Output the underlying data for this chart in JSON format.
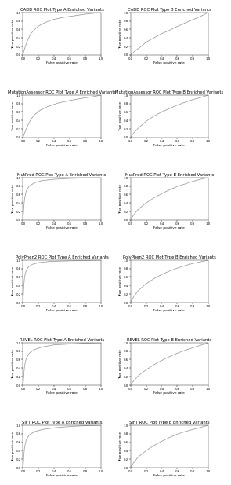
{
  "tools": [
    "CADD",
    "MutationAssessor",
    "MutPred",
    "PolyPhen2",
    "REVEL",
    "SIFT"
  ],
  "titles_A": [
    "CADD ROC Plot Type A Enriched Variants",
    "MutationAssessor ROC Plot Type A Enriched Variants",
    "MutPred ROC Plot Type A Enriched Variants",
    "PolyPhen2 ROC Plot Type A Enriched Variants",
    "REVEL ROC Plot Type A Enriched Variants",
    "SIFT ROC Plot Type A Enriched Variants"
  ],
  "titles_B": [
    "CADD ROC Plot Type B Enriched Variants",
    "MutationAssessor ROC Plot Type B Enriched Variants",
    "MutPred ROC Plot Type B Enriched Variants",
    "PolyPhen2 ROC Plot Type B Enriched Variants",
    "REVEL ROC Plot Type B Enriched Variants",
    "SIFT ROC Plot Type B Enriched Variants"
  ],
  "xlabel": "False positive rate",
  "ylabel": "True positive rate",
  "line_color": "#999999",
  "bg_color": "#ffffff",
  "title_fontsize": 3.8,
  "axis_fontsize": 3.2,
  "tick_fontsize": 2.8,
  "line_width": 0.55,
  "roc_A": {
    "CADD": [
      [
        0,
        0.01,
        0.03,
        0.06,
        0.1,
        0.15,
        0.2,
        0.28,
        0.38,
        0.5,
        0.65,
        0.8,
        1.0
      ],
      [
        0,
        0.08,
        0.2,
        0.35,
        0.5,
        0.6,
        0.68,
        0.76,
        0.83,
        0.88,
        0.92,
        0.96,
        1.0
      ]
    ],
    "MutationAssessor": [
      [
        0,
        0.01,
        0.03,
        0.06,
        0.1,
        0.15,
        0.22,
        0.32,
        0.45,
        0.6,
        0.75,
        0.9,
        1.0
      ],
      [
        0,
        0.05,
        0.15,
        0.28,
        0.42,
        0.54,
        0.64,
        0.73,
        0.81,
        0.87,
        0.92,
        0.96,
        1.0
      ]
    ],
    "MutPred": [
      [
        0,
        0.005,
        0.01,
        0.02,
        0.04,
        0.08,
        0.15,
        0.25,
        0.4,
        0.6,
        0.8,
        1.0
      ],
      [
        0,
        0.15,
        0.3,
        0.5,
        0.68,
        0.8,
        0.88,
        0.93,
        0.96,
        0.98,
        0.99,
        1.0
      ]
    ],
    "PolyPhen2": [
      [
        0,
        0.005,
        0.01,
        0.02,
        0.04,
        0.07,
        0.12,
        0.2,
        0.35,
        0.55,
        0.75,
        1.0
      ],
      [
        0,
        0.2,
        0.4,
        0.6,
        0.75,
        0.84,
        0.9,
        0.94,
        0.97,
        0.98,
        0.99,
        1.0
      ]
    ],
    "REVEL": [
      [
        0,
        0.005,
        0.01,
        0.02,
        0.04,
        0.08,
        0.15,
        0.25,
        0.4,
        0.6,
        0.8,
        1.0
      ],
      [
        0,
        0.1,
        0.25,
        0.45,
        0.62,
        0.75,
        0.84,
        0.9,
        0.95,
        0.97,
        0.99,
        1.0
      ]
    ],
    "SIFT": [
      [
        0,
        0.005,
        0.01,
        0.02,
        0.04,
        0.08,
        0.15,
        0.25,
        0.4,
        0.6,
        0.8,
        1.0
      ],
      [
        0,
        0.12,
        0.28,
        0.48,
        0.65,
        0.77,
        0.85,
        0.9,
        0.94,
        0.97,
        0.99,
        1.0
      ]
    ]
  },
  "roc_B": {
    "CADD": [
      [
        0,
        0.02,
        0.05,
        0.1,
        0.15,
        0.2,
        0.3,
        0.4,
        0.5,
        0.6,
        0.7,
        0.8,
        0.9,
        1.0
      ],
      [
        0,
        0.03,
        0.08,
        0.15,
        0.22,
        0.3,
        0.4,
        0.5,
        0.58,
        0.67,
        0.75,
        0.83,
        0.91,
        1.0
      ]
    ],
    "MutationAssessor": [
      [
        0,
        0.02,
        0.05,
        0.1,
        0.2,
        0.3,
        0.4,
        0.5,
        0.6,
        0.7,
        0.8,
        0.9,
        1.0
      ],
      [
        0,
        0.05,
        0.12,
        0.22,
        0.38,
        0.5,
        0.6,
        0.68,
        0.76,
        0.83,
        0.89,
        0.94,
        1.0
      ]
    ],
    "MutPred": [
      [
        0,
        0.02,
        0.05,
        0.1,
        0.2,
        0.3,
        0.4,
        0.5,
        0.6,
        0.7,
        0.8,
        0.9,
        1.0
      ],
      [
        0,
        0.06,
        0.14,
        0.25,
        0.4,
        0.52,
        0.62,
        0.71,
        0.79,
        0.85,
        0.91,
        0.96,
        1.0
      ]
    ],
    "PolyPhen2": [
      [
        0,
        0.02,
        0.05,
        0.1,
        0.2,
        0.3,
        0.4,
        0.5,
        0.6,
        0.7,
        0.8,
        0.9,
        1.0
      ],
      [
        0,
        0.07,
        0.16,
        0.28,
        0.44,
        0.56,
        0.66,
        0.74,
        0.81,
        0.87,
        0.92,
        0.96,
        1.0
      ]
    ],
    "REVEL": [
      [
        0,
        0.02,
        0.05,
        0.1,
        0.2,
        0.3,
        0.4,
        0.5,
        0.6,
        0.7,
        0.8,
        0.9,
        1.0
      ],
      [
        0,
        0.05,
        0.12,
        0.22,
        0.36,
        0.48,
        0.58,
        0.67,
        0.75,
        0.82,
        0.88,
        0.94,
        1.0
      ]
    ],
    "SIFT": [
      [
        0,
        0.02,
        0.05,
        0.1,
        0.2,
        0.3,
        0.4,
        0.5,
        0.6,
        0.7,
        0.8,
        0.9,
        1.0
      ],
      [
        0,
        0.06,
        0.14,
        0.25,
        0.4,
        0.52,
        0.62,
        0.71,
        0.79,
        0.85,
        0.9,
        0.95,
        1.0
      ]
    ]
  },
  "yticks": [
    0.0,
    0.2,
    0.4,
    0.6,
    0.8,
    1.0
  ],
  "xticks": [
    0.0,
    0.2,
    0.4,
    0.6,
    0.8,
    1.0
  ],
  "xlim": [
    0.0,
    1.0
  ],
  "ylim": [
    0.0,
    1.0
  ]
}
